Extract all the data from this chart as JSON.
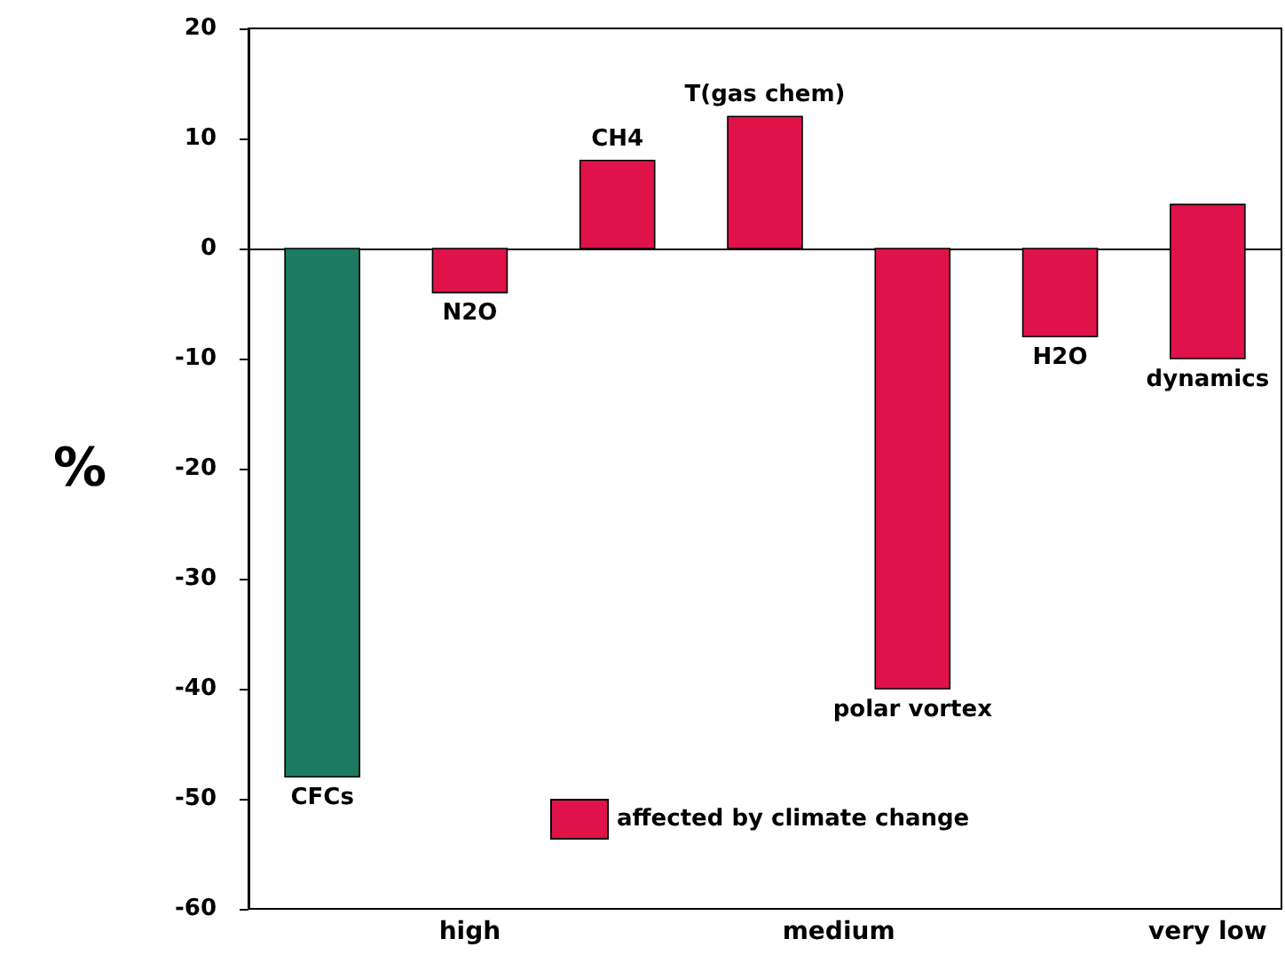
{
  "chart_data": {
    "type": "bar",
    "ylabel": "%",
    "categories": [
      "CFCs",
      "N2O",
      "CH4",
      "T(gas chem)",
      "polar vortex",
      "H2O",
      "dynamics"
    ],
    "series": [
      {
        "color": "#1b7a5f",
        "values": [
          -48,
          null,
          null,
          null,
          null,
          null,
          null
        ]
      },
      {
        "name": "affected by climate change",
        "color": "#e0124a",
        "values": [
          null,
          -4,
          8,
          12,
          -40,
          -8,
          14
        ],
        "base": [
          null,
          0,
          0,
          0,
          0,
          0,
          -10
        ]
      }
    ],
    "ylim": [
      -60,
      20
    ],
    "yticks": [
      -60,
      -50,
      -40,
      -30,
      -20,
      -10,
      0,
      10,
      20
    ],
    "annotations": [
      "high",
      "medium",
      "very low"
    ],
    "legend": "bottom"
  }
}
